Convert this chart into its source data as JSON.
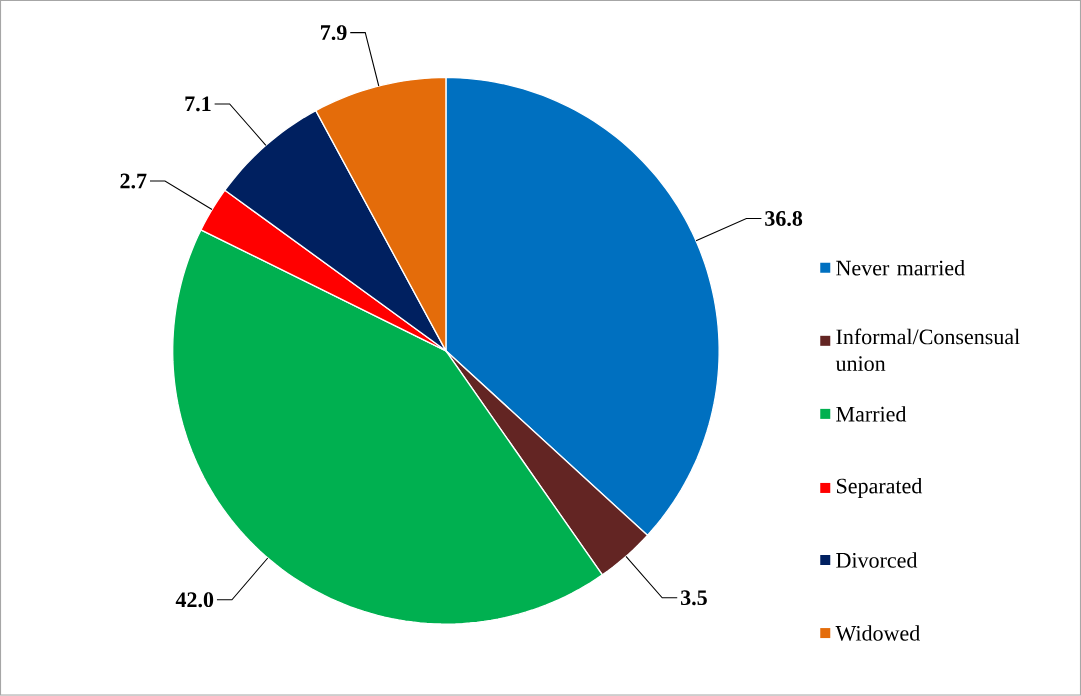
{
  "chart_data": {
    "type": "pie",
    "categories": [
      "Never married",
      "Informal/Consensual union",
      "Married",
      "Separated",
      "Divorced",
      "Widowed"
    ],
    "values": [
      36.8,
      3.5,
      42.0,
      2.7,
      7.1,
      7.9
    ],
    "colors": [
      "#0070c0",
      "#632523",
      "#00b050",
      "#ff0000",
      "#002060",
      "#e46c0a"
    ],
    "value_labels": [
      "36.8",
      "3.5",
      "42.0",
      "2.7",
      "7.1",
      "7.9"
    ],
    "legend": "right"
  }
}
